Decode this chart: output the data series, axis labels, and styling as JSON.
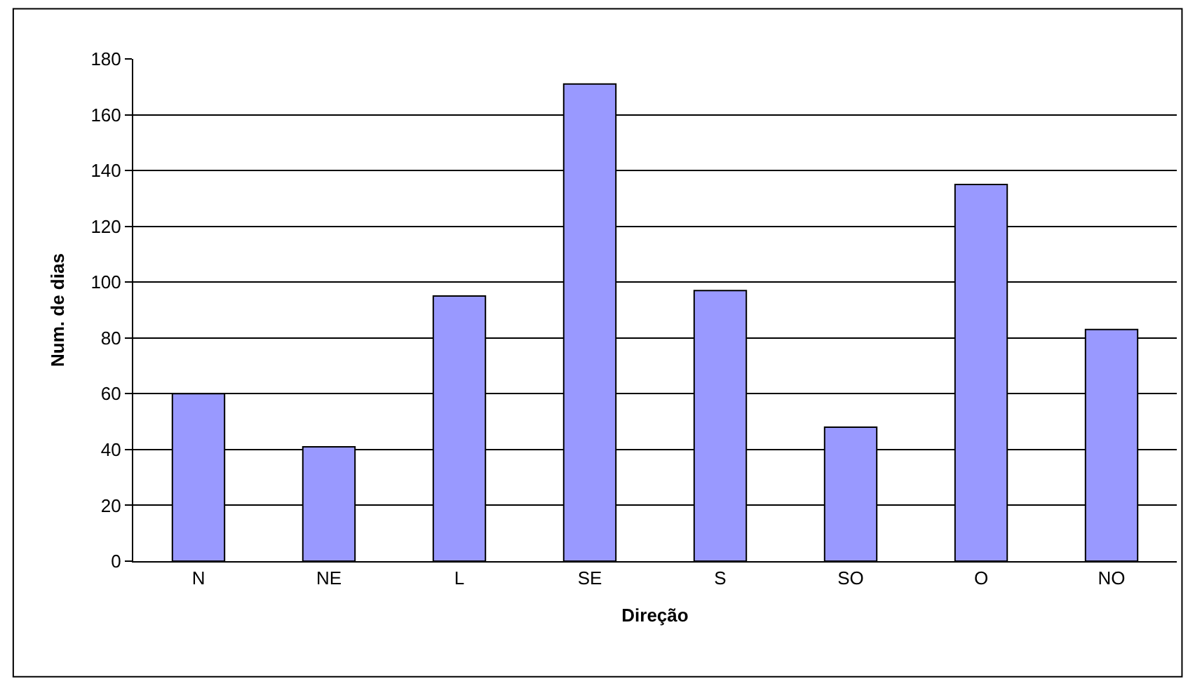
{
  "chart_data": {
    "type": "bar",
    "xlabel": "Direção",
    "ylabel": "Num. de dias",
    "categories": [
      "N",
      "NE",
      "L",
      "SE",
      "S",
      "SO",
      "O",
      "NO"
    ],
    "values": [
      60,
      41,
      95,
      171,
      97,
      48,
      135,
      83
    ],
    "color": "#9999ff",
    "ylim": [
      0,
      180
    ],
    "yticks": [
      0,
      20,
      40,
      60,
      80,
      100,
      120,
      140,
      160,
      180
    ],
    "grid": "y"
  }
}
